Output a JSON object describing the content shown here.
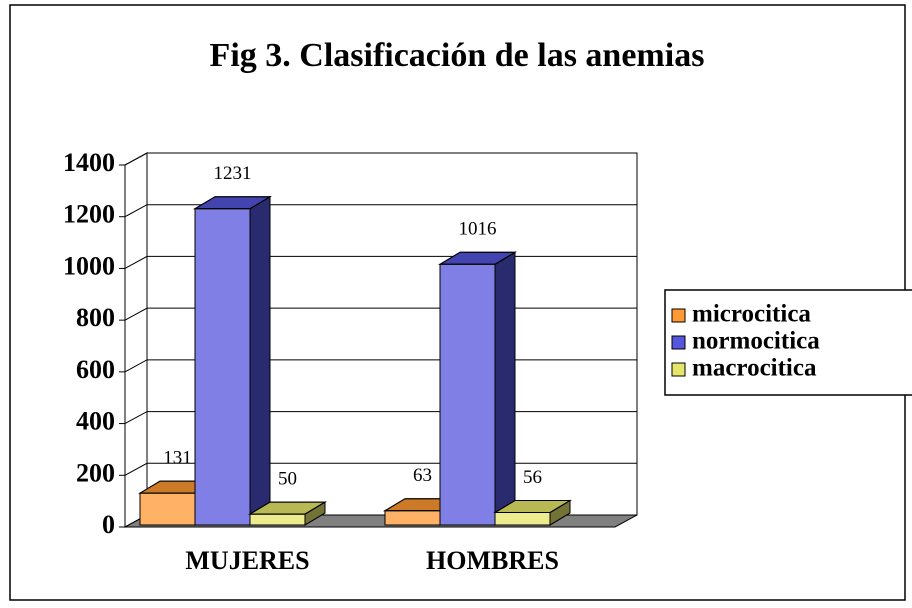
{
  "chart_data": {
    "type": "bar3d",
    "title": "Fig 3. Clasificación de las anemias",
    "categories": [
      "MUJERES",
      "HOMBRES"
    ],
    "series": [
      {
        "name": "microcitica",
        "color": "#ff9933",
        "values": [
          131,
          63
        ]
      },
      {
        "name": "normocitica",
        "color": "#5555dd",
        "values": [
          1231,
          1016
        ]
      },
      {
        "name": "macrocitica",
        "color": "#e6e66a",
        "values": [
          50,
          56
        ]
      }
    ],
    "ylim": [
      0,
      1400
    ],
    "yticks": [
      0,
      200,
      400,
      600,
      800,
      1000,
      1200,
      1400
    ],
    "grid": true
  }
}
